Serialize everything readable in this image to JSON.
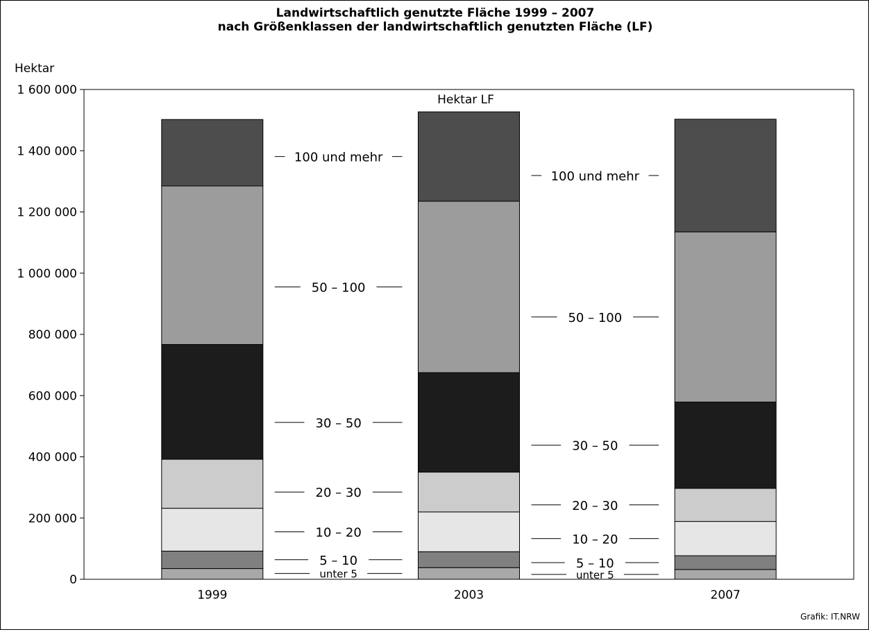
{
  "chart_data": {
    "type": "bar",
    "stacked": true,
    "title": "Landwirtschaftlich genutzte Fläche 1999 – 2007",
    "subtitle": "nach Größenklassen der landwirtschaftlich genutzten Fläche (LF)",
    "ylabel": "Hektar",
    "center_label": "Hektar LF",
    "ylim": [
      0,
      1600000
    ],
    "yticks": [
      0,
      200000,
      400000,
      600000,
      800000,
      1000000,
      1200000,
      1400000,
      1600000
    ],
    "ytick_labels": [
      "0",
      "200 000",
      "400 000",
      "600 000",
      "800 000",
      "1 000 000",
      "1 200 000",
      "1 400 000",
      "1 600 000"
    ],
    "categories": [
      "1999",
      "2003",
      "2007"
    ],
    "series": [
      {
        "name": "unter 5",
        "color": "#a8a8a8",
        "values": [
          35000,
          38000,
          32000
        ]
      },
      {
        "name": "5 – 10",
        "color": "#808080",
        "values": [
          57000,
          52000,
          45000
        ]
      },
      {
        "name": "10 – 20",
        "color": "#e6e6e6",
        "values": [
          140000,
          130000,
          112000
        ]
      },
      {
        "name": "20 – 30",
        "color": "#cccccc",
        "values": [
          160000,
          130000,
          108000
        ]
      },
      {
        "name": "30 – 50",
        "color": "#1c1c1c",
        "values": [
          375000,
          325000,
          282000
        ]
      },
      {
        "name": "50 – 100",
        "color": "#9c9c9c",
        "values": [
          518000,
          560000,
          556000
        ]
      },
      {
        "name": "100 und mehr",
        "color": "#4d4d4d",
        "values": [
          217000,
          292000,
          368000
        ]
      }
    ],
    "grid": false,
    "credit": "Grafik: IT.NRW"
  }
}
